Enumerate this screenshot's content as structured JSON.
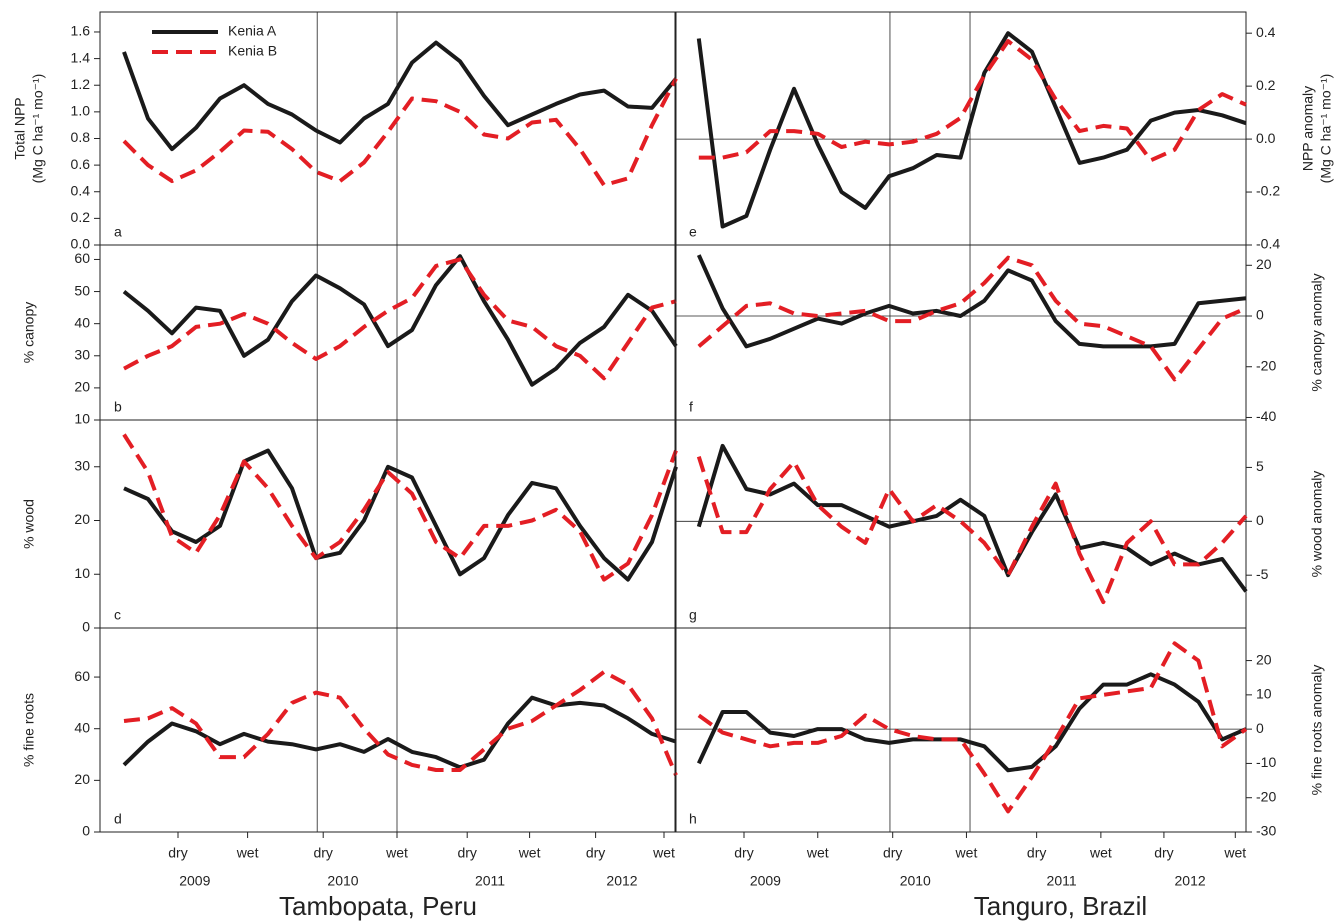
{
  "chart_data": [
    {
      "type": "line",
      "title": "Tambopata, Peru",
      "side": "left",
      "xlim": [
        0,
        48
      ],
      "x": [
        2,
        4,
        6,
        8,
        10,
        12,
        14,
        16,
        18,
        20,
        22,
        24,
        26,
        28,
        30,
        32,
        34,
        36,
        38,
        40,
        42,
        44,
        46,
        48
      ],
      "xticks": [
        {
          "value": 6.5,
          "label": "dry"
        },
        {
          "value": 12.3,
          "label": "wet"
        },
        {
          "value": 18.6,
          "label": "dry"
        },
        {
          "value": 24.75,
          "label": "wet"
        },
        {
          "value": 30.6,
          "label": "dry"
        },
        {
          "value": 35.8,
          "label": "wet"
        },
        {
          "value": 41.3,
          "label": "dry"
        },
        {
          "value": 47,
          "label": "wet"
        }
      ],
      "year_labels": [
        {
          "value": 7.9,
          "label": "2009"
        },
        {
          "value": 20.25,
          "label": "2010"
        },
        {
          "value": 32.5,
          "label": "2011"
        },
        {
          "value": 43.5,
          "label": "2012"
        }
      ],
      "vlines": [
        18.1,
        24.75
      ],
      "panels": [
        {
          "letter": "a",
          "ylabel": [
            "Total NPP",
            "(Mg C ha⁻¹ mo⁻¹)"
          ],
          "ylim": [
            0,
            1.75
          ],
          "yticks": [
            {
              "value": 0,
              "label": "0.0"
            },
            0.2,
            0.4,
            0.6,
            0.8,
            {
              "value": 1,
              "label": "1.0"
            },
            1.2,
            1.4,
            1.6
          ],
          "legend": "upper left",
          "series": [
            {
              "name": "Kenia A",
              "color": "#1a1a1a",
              "dashed": false,
              "values": [
                1.45,
                0.95,
                0.72,
                0.88,
                1.1,
                1.2,
                1.06,
                0.98,
                0.86,
                0.77,
                0.95,
                1.06,
                1.37,
                1.52,
                1.38,
                1.12,
                0.9,
                0.98,
                1.06,
                1.13,
                1.16,
                1.04,
                1.03,
                1.25
              ]
            },
            {
              "name": "Kenia B",
              "color": "#e31e24",
              "dashed": true,
              "values": [
                0.78,
                0.6,
                0.48,
                0.56,
                0.7,
                0.86,
                0.85,
                0.72,
                0.55,
                0.48,
                0.62,
                0.85,
                1.1,
                1.08,
                1.0,
                0.83,
                0.8,
                0.92,
                0.94,
                0.72,
                0.45,
                0.5,
                0.9,
                1.25
              ]
            }
          ]
        },
        {
          "letter": "b",
          "ylabel": [
            "% canopy"
          ],
          "ylim": [
            10,
            64.5
          ],
          "yticks": [
            10,
            20,
            30,
            40,
            50,
            60
          ],
          "series": [
            {
              "name": "Kenia A",
              "color": "#1a1a1a",
              "dashed": false,
              "values": [
                50,
                44,
                37,
                45,
                44,
                30,
                35,
                47,
                55,
                51,
                46,
                33,
                38,
                52,
                61,
                47,
                35,
                21,
                26,
                34,
                39,
                49,
                44,
                33
              ]
            },
            {
              "name": "Kenia B",
              "color": "#e31e24",
              "dashed": true,
              "values": [
                26,
                30,
                33,
                39,
                40,
                43,
                40,
                34,
                29,
                33,
                39,
                44,
                48,
                58,
                60,
                49,
                41,
                39,
                33,
                30,
                23,
                34,
                45,
                47
              ]
            }
          ]
        },
        {
          "letter": "c",
          "ylabel": [
            "% wood"
          ],
          "ylim": [
            0,
            38.7
          ],
          "yticks": [
            0,
            10,
            20,
            30
          ],
          "series": [
            {
              "name": "Kenia A",
              "color": "#1a1a1a",
              "dashed": false,
              "values": [
                26,
                24,
                18,
                16,
                19,
                31,
                33,
                26,
                13,
                14,
                20,
                30,
                28,
                19,
                10,
                13,
                21,
                27,
                26,
                19,
                13,
                9,
                16,
                30
              ]
            },
            {
              "name": "Kenia B",
              "color": "#e31e24",
              "dashed": true,
              "values": [
                36,
                29,
                17,
                14,
                21,
                31,
                26,
                19,
                13,
                16,
                22,
                29,
                25,
                16,
                13,
                19,
                19,
                20,
                22,
                18,
                9,
                12,
                21,
                33
              ]
            }
          ]
        },
        {
          "letter": "d",
          "ylabel": [
            "% fine roots"
          ],
          "ylim": [
            0,
            79
          ],
          "yticks": [
            0,
            20,
            40,
            60
          ],
          "series": [
            {
              "name": "Kenia A",
              "color": "#1a1a1a",
              "dashed": false,
              "values": [
                26,
                35,
                42,
                39,
                34,
                38,
                35,
                34,
                32,
                34,
                31,
                36,
                31,
                29,
                25,
                28,
                42,
                52,
                49,
                50,
                49,
                44,
                38,
                35
              ]
            },
            {
              "name": "Kenia B",
              "color": "#e31e24",
              "dashed": true,
              "values": [
                43,
                44,
                48,
                42,
                29,
                29,
                38,
                50,
                54,
                52,
                40,
                30,
                26,
                24,
                24,
                32,
                40,
                43,
                49,
                55,
                62,
                57,
                44,
                22
              ]
            }
          ]
        }
      ]
    },
    {
      "type": "line",
      "title": "Tanguro, Brazil",
      "side": "right",
      "xlim": [
        0,
        48
      ],
      "zero_line": true,
      "x": [
        2,
        4,
        6,
        8,
        10,
        12,
        14,
        16,
        18,
        20,
        22,
        24,
        26,
        28,
        30,
        32,
        34,
        36,
        38,
        40,
        42,
        44,
        46,
        48
      ],
      "xticks": [
        {
          "value": 5.8,
          "label": "dry"
        },
        {
          "value": 12,
          "label": "wet"
        },
        {
          "value": 18.3,
          "label": "dry"
        },
        {
          "value": 24.5,
          "label": "wet"
        },
        {
          "value": 30.4,
          "label": "dry"
        },
        {
          "value": 35.8,
          "label": "wet"
        },
        {
          "value": 41.1,
          "label": "dry"
        },
        {
          "value": 47.1,
          "label": "wet"
        }
      ],
      "year_labels": [
        {
          "value": 7.6,
          "label": "2009"
        },
        {
          "value": 20.2,
          "label": "2010"
        },
        {
          "value": 32.5,
          "label": "2011"
        },
        {
          "value": 43.3,
          "label": "2012"
        }
      ],
      "vlines": [
        18.07,
        24.8
      ],
      "panels": [
        {
          "letter": "e",
          "ylabel": [
            "NPP anomaly",
            "(Mg C ha⁻¹ mo⁻¹)"
          ],
          "ylim": [
            -0.4,
            0.48
          ],
          "yticks": [
            -0.4,
            -0.2,
            {
              "value": 0,
              "label": "0.0"
            },
            0.2,
            0.4
          ],
          "series": [
            {
              "name": "Kenia A",
              "color": "#1a1a1a",
              "dashed": false,
              "values": [
                0.38,
                -0.33,
                -0.29,
                -0.04,
                0.19,
                -0.02,
                -0.2,
                -0.26,
                -0.14,
                -0.11,
                -0.06,
                -0.07,
                0.25,
                0.4,
                0.33,
                0.12,
                -0.09,
                -0.07,
                -0.04,
                0.07,
                0.1,
                0.11,
                0.09,
                0.06
              ]
            },
            {
              "name": "Kenia B",
              "color": "#e31e24",
              "dashed": true,
              "values": [
                -0.07,
                -0.07,
                -0.05,
                0.03,
                0.03,
                0.02,
                -0.03,
                -0.01,
                -0.02,
                -0.01,
                0.02,
                0.08,
                0.24,
                0.37,
                0.3,
                0.15,
                0.03,
                0.05,
                0.04,
                -0.08,
                -0.04,
                0.11,
                0.17,
                0.13
              ]
            }
          ]
        },
        {
          "letter": "f",
          "ylabel": [
            "% canopy anomaly"
          ],
          "ylim": [
            -41,
            28
          ],
          "yticks": [
            -40,
            -20,
            0,
            20
          ],
          "series": [
            {
              "name": "Kenia A",
              "color": "#1a1a1a",
              "dashed": false,
              "values": [
                24,
                3,
                -12,
                -9,
                -5,
                -1,
                -3,
                1,
                4,
                1,
                2,
                0,
                6,
                18,
                14,
                -2,
                -11,
                -12,
                -12,
                -12,
                -11,
                5,
                6,
                7
              ]
            },
            {
              "name": "Kenia B",
              "color": "#e31e24",
              "dashed": true,
              "values": [
                -12,
                -4,
                4,
                5,
                1,
                0,
                1,
                2,
                -2,
                -2,
                2,
                5,
                13,
                23,
                20,
                6,
                -3,
                -4,
                -8,
                -12,
                -25,
                -13,
                -1,
                3
              ]
            }
          ]
        },
        {
          "letter": "g",
          "ylabel": [
            "% wood anomaly"
          ],
          "ylim": [
            -9.9,
            9.4
          ],
          "yticks": [
            -5,
            0,
            5
          ],
          "series": [
            {
              "name": "Kenia A",
              "color": "#1a1a1a",
              "dashed": false,
              "values": [
                -0.5,
                7,
                3,
                2.5,
                3.5,
                1.5,
                1.5,
                0.5,
                -0.5,
                0,
                0.5,
                2,
                0.5,
                -5,
                -1,
                2.5,
                -2.5,
                -2,
                -2.5,
                -4,
                -3,
                -4,
                -3.5,
                -6.5
              ]
            },
            {
              "name": "Kenia B",
              "color": "#e31e24",
              "dashed": true,
              "values": [
                6,
                -1,
                -1,
                3,
                5.5,
                1.5,
                -0.5,
                -2,
                3,
                0,
                1.5,
                0,
                -2,
                -5,
                -0.5,
                3.5,
                -3,
                -7.5,
                -2,
                0,
                -4,
                -4,
                -2,
                0.5
              ]
            }
          ]
        },
        {
          "letter": "h",
          "ylabel": [
            "% fine roots anomaly"
          ],
          "ylim": [
            -30,
            29.5
          ],
          "yticks": [
            -30,
            -20,
            -10,
            0,
            10,
            20
          ],
          "series": [
            {
              "name": "Kenia A",
              "color": "#1a1a1a",
              "dashed": false,
              "values": [
                -10,
                5,
                5,
                -1,
                -2,
                0,
                0,
                -3,
                -4,
                -3,
                -3,
                -3,
                -5,
                -12,
                -11,
                -5,
                6,
                13,
                13,
                16,
                13,
                8,
                -3,
                0
              ]
            },
            {
              "name": "Kenia B",
              "color": "#e31e24",
              "dashed": true,
              "values": [
                4,
                -1,
                -3,
                -5,
                -4,
                -4,
                -2,
                4,
                0,
                -2,
                -3,
                -3,
                -13,
                -24,
                -14,
                -3,
                9,
                10,
                11,
                12,
                25,
                20,
                -5,
                0
              ]
            }
          ]
        }
      ]
    }
  ]
}
